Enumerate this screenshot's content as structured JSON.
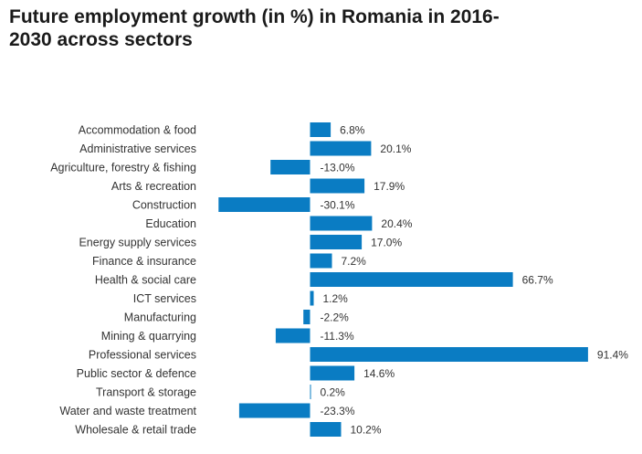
{
  "colors": {
    "bar": "#0a7cc3"
  },
  "chart_data": {
    "type": "bar",
    "orientation": "horizontal",
    "title": "Future employment growth (in %) in Romania in 2016-2030 across sectors",
    "categories": [
      "Accommodation & food",
      "Administrative services",
      "Agriculture, forestry & fishing",
      "Arts & recreation",
      "Construction",
      "Education",
      "Energy supply services",
      "Finance & insurance",
      "Health & social care",
      "ICT services",
      "Manufacturing",
      "Mining & quarrying",
      "Professional services",
      "Public sector & defence",
      "Transport & storage",
      "Water and waste treatment",
      "Wholesale & retail trade"
    ],
    "values": [
      6.8,
      20.1,
      -13.0,
      17.9,
      -30.1,
      20.4,
      17.0,
      7.2,
      66.7,
      1.2,
      -2.2,
      -11.3,
      91.4,
      14.6,
      0.2,
      -23.3,
      10.2
    ],
    "value_labels": [
      "6.8%",
      "20.1%",
      "-13.0%",
      "17.9%",
      "-30.1%",
      "20.4%",
      "17.0%",
      "7.2%",
      "66.7%",
      "1.2%",
      "-2.2%",
      "-11.3%",
      "91.4%",
      "14.6%",
      "0.2%",
      "-23.3%",
      "10.2%"
    ],
    "xlim": [
      -30.1,
      91.4
    ],
    "grid": false,
    "legend": "none"
  }
}
